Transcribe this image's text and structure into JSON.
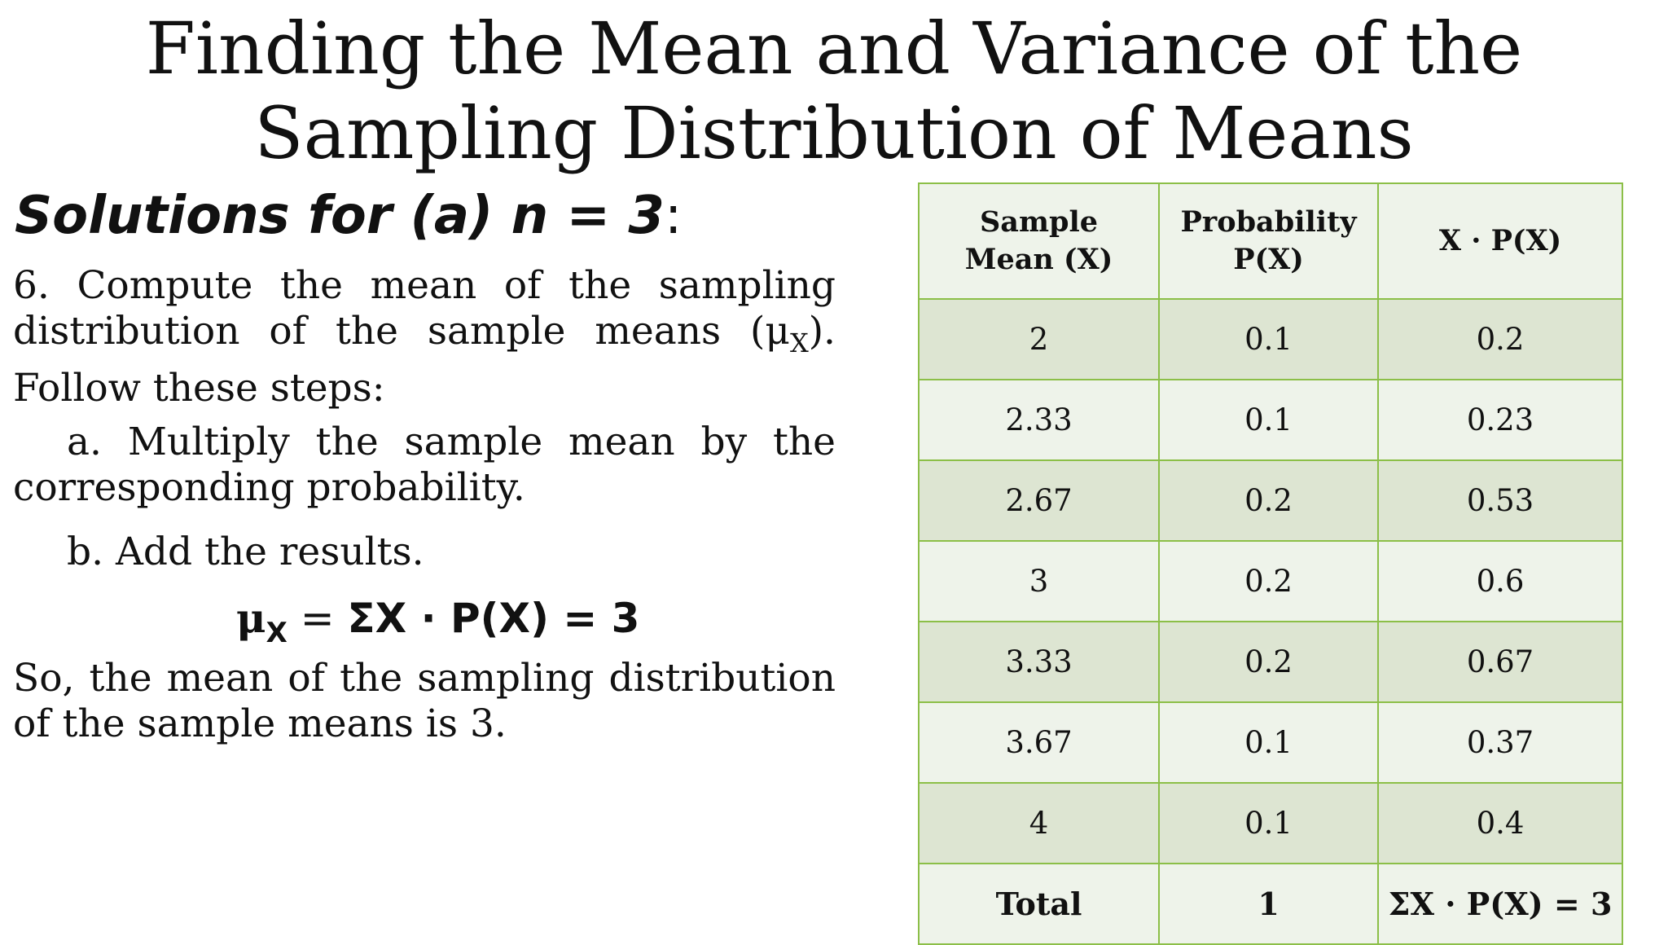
{
  "title": {
    "line1": "Finding the Mean and Variance of the",
    "line2": "Sampling Distribution of Means"
  },
  "solutions_heading": {
    "text": "Solutions for (a) n = 3",
    "colon": ":"
  },
  "step6": {
    "text": "6. Compute the mean of the sampling distribution of the sample means (μ",
    "sub": "X",
    "end": "). Follow these steps:"
  },
  "step_a": "a. Multiply the sample mean by the corresponding probability.",
  "step_b": "b. Add the results.",
  "formula": {
    "mu": "μ",
    "sub": "X",
    "eq": " = ",
    "expr": "ΣX · P(X) = 3"
  },
  "conclusion": "So, the mean of the sampling distribution of the sample means is 3.",
  "table": {
    "headers": {
      "col1_line1": "Sample",
      "col1_line2": "Mean (X)",
      "col2_line1": "Probability",
      "col2_line2": "P(X)",
      "col3": "X · P(X)"
    },
    "rows": [
      {
        "mean": "2",
        "prob": "0.1",
        "product": "0.2"
      },
      {
        "mean": "2.33",
        "prob": "0.1",
        "product": "0.23"
      },
      {
        "mean": "2.67",
        "prob": "0.2",
        "product": "0.53"
      },
      {
        "mean": "3",
        "prob": "0.2",
        "product": "0.6"
      },
      {
        "mean": "3.33",
        "prob": "0.2",
        "product": "0.67"
      },
      {
        "mean": "3.67",
        "prob": "0.1",
        "product": "0.37"
      },
      {
        "mean": "4",
        "prob": "0.1",
        "product": "0.4"
      }
    ],
    "total": {
      "label": "Total",
      "prob": "1",
      "product": "ΣX · P(X) = 3"
    }
  },
  "colors": {
    "table_border": "#8cbf48",
    "row_dark": "#dde5d2",
    "row_light": "#eef3ea",
    "text": "#111111"
  }
}
